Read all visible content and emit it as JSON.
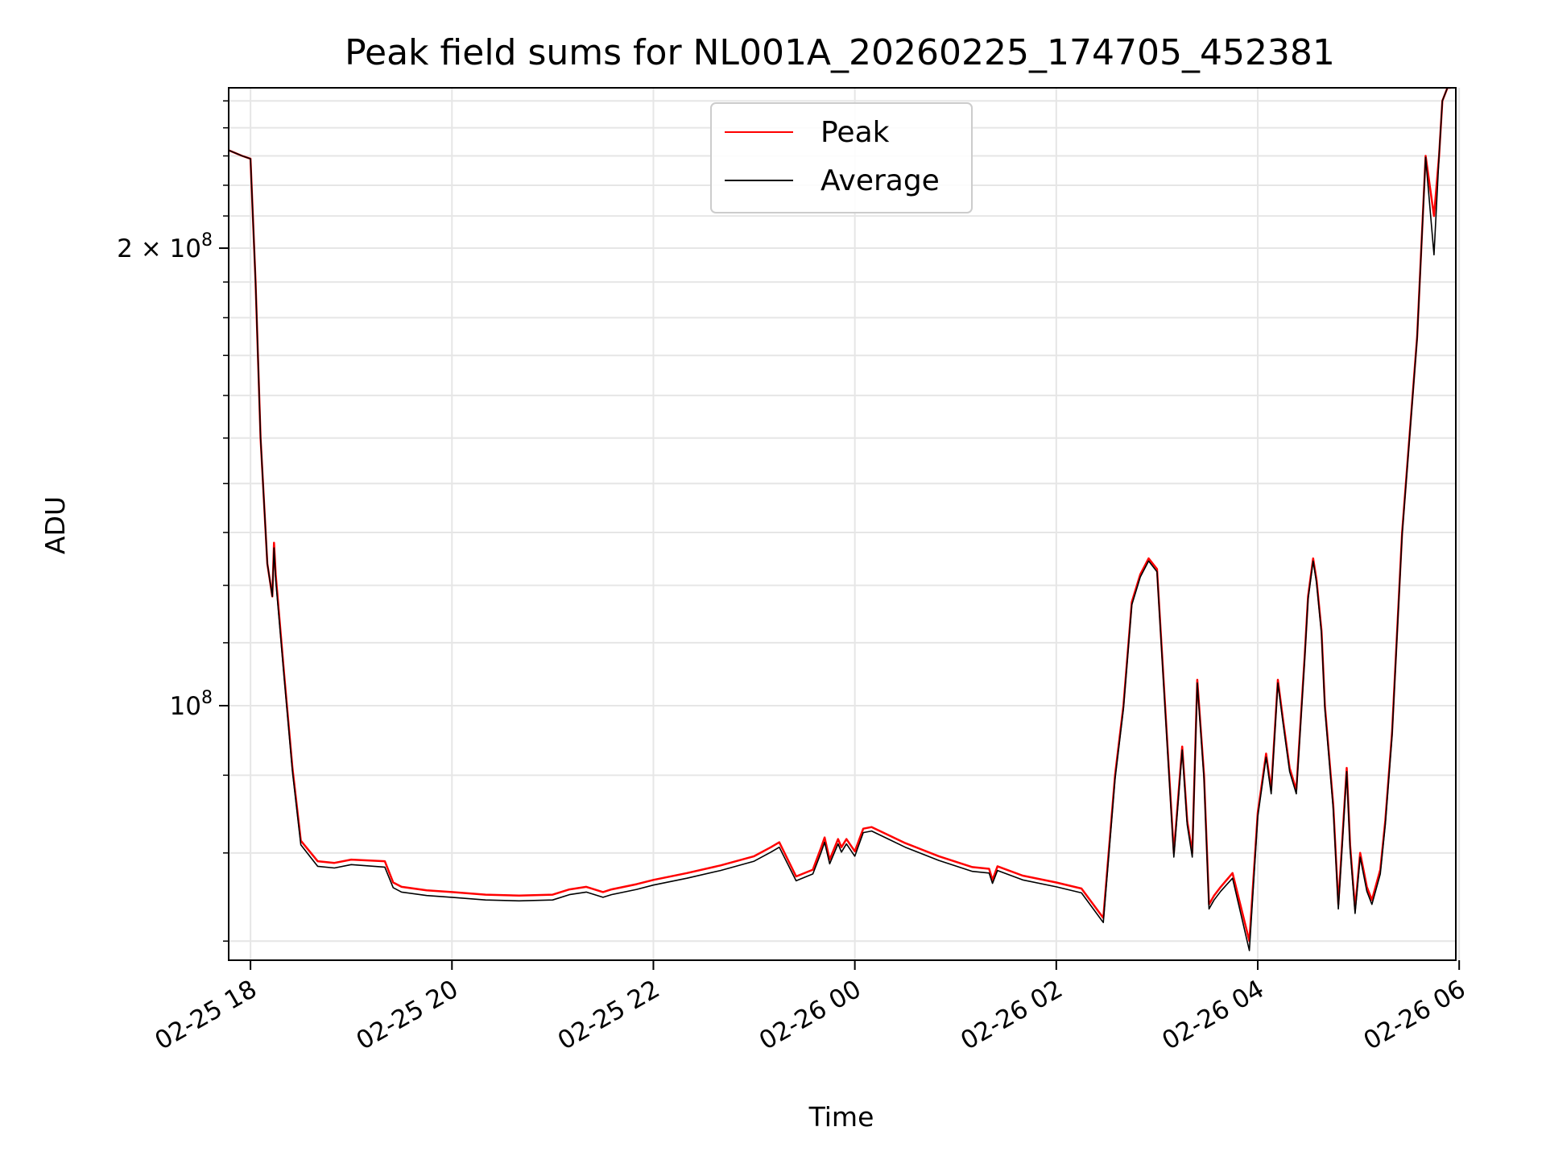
{
  "chart_data": {
    "type": "line",
    "title": "Peak field sums for NL001A_20260225_174705_452381",
    "xlabel": "Time",
    "ylabel": "ADU",
    "yscale": "log",
    "xlim": [
      "02-25 17:47",
      "02-26 05:58"
    ],
    "ylim": [
      68000000,
      255000000
    ],
    "grid": true,
    "legend_position": "top-center",
    "x_ticks": [
      "02-25 18",
      "02-25 20",
      "02-25 22",
      "02-26 00",
      "02-26 02",
      "02-26 04",
      "02-26 06"
    ],
    "y_ticks": [
      {
        "value": 200000000,
        "label": "2 × 10^8",
        "base": "2 × 10",
        "exp": "8"
      },
      {
        "value": 100000000,
        "label": "10^8",
        "base": "10",
        "exp": "8"
      }
    ],
    "x": [
      "02-25 17:47",
      "02-25 17:55",
      "02-25 18:00",
      "02-25 18:03",
      "02-25 18:06",
      "02-25 18:10",
      "02-25 18:13",
      "02-25 18:14",
      "02-25 18:15",
      "02-25 18:20",
      "02-25 18:25",
      "02-25 18:30",
      "02-25 18:40",
      "02-25 18:50",
      "02-25 19:00",
      "02-25 19:20",
      "02-25 19:25",
      "02-25 19:30",
      "02-25 19:45",
      "02-25 20:00",
      "02-25 20:20",
      "02-25 20:40",
      "02-25 21:00",
      "02-25 21:10",
      "02-25 21:20",
      "02-25 21:30",
      "02-25 21:35",
      "02-25 21:50",
      "02-25 22:00",
      "02-25 22:20",
      "02-25 22:40",
      "02-25 23:00",
      "02-25 23:10",
      "02-25 23:15",
      "02-25 23:25",
      "02-25 23:35",
      "02-25 23:40",
      "02-25 23:42",
      "02-25 23:45",
      "02-25 23:50",
      "02-25 23:52",
      "02-25 23:55",
      "02-26 00:00",
      "02-26 00:05",
      "02-26 00:10",
      "02-26 00:20",
      "02-26 00:30",
      "02-26 00:50",
      "02-26 01:10",
      "02-26 01:20",
      "02-26 01:22",
      "02-26 01:25",
      "02-26 01:40",
      "02-26 02:00",
      "02-26 02:15",
      "02-26 02:28",
      "02-26 02:35",
      "02-26 02:40",
      "02-26 02:45",
      "02-26 02:50",
      "02-26 02:55",
      "02-26 03:00",
      "02-26 03:10",
      "02-26 03:15",
      "02-26 03:18",
      "02-26 03:21",
      "02-26 03:24",
      "02-26 03:28",
      "02-26 03:31",
      "02-26 03:34",
      "02-26 03:38",
      "02-26 03:45",
      "02-26 03:55",
      "02-26 04:00",
      "02-26 04:05",
      "02-26 04:08",
      "02-26 04:12",
      "02-26 04:15",
      "02-26 04:19",
      "02-26 04:23",
      "02-26 04:28",
      "02-26 04:30",
      "02-26 04:33",
      "02-26 04:35",
      "02-26 04:38",
      "02-26 04:40",
      "02-26 04:45",
      "02-26 04:48",
      "02-26 04:53",
      "02-26 04:55",
      "02-26 04:58",
      "02-26 05:01",
      "02-26 05:05",
      "02-26 05:08",
      "02-26 05:13",
      "02-26 05:16",
      "02-26 05:20",
      "02-26 05:26",
      "02-26 05:35",
      "02-26 05:40",
      "02-26 05:45",
      "02-26 05:48",
      "02-26 05:50",
      "02-26 05:53",
      "02-26 05:55"
    ],
    "series": [
      {
        "name": "Peak",
        "color": "#ff0000",
        "values": [
          232000000,
          230000000,
          229000000,
          190000000,
          150000000,
          124000000,
          118000000,
          128000000,
          122000000,
          105000000,
          91000000,
          81500000,
          79000000,
          78800000,
          79200000,
          79000000,
          76500000,
          76000000,
          75600000,
          75400000,
          75100000,
          75000000,
          75100000,
          75700000,
          76000000,
          75400000,
          75700000,
          76300000,
          76800000,
          77600000,
          78500000,
          79600000,
          80700000,
          81300000,
          77200000,
          78000000,
          80700000,
          81900000,
          79200000,
          81700000,
          80700000,
          81700000,
          80200000,
          83000000,
          83200000,
          82200000,
          81200000,
          79600000,
          78300000,
          78100000,
          76800000,
          78400000,
          77300000,
          76500000,
          75800000,
          72500000,
          90000000,
          100000000,
          117000000,
          122000000,
          125000000,
          123000000,
          80000000,
          94000000,
          84000000,
          80000000,
          104000000,
          90000000,
          74000000,
          75000000,
          76000000,
          77600000,
          70000000,
          85000000,
          93000000,
          88000000,
          104000000,
          98000000,
          91000000,
          88000000,
          108000000,
          118000000,
          125000000,
          121000000,
          112000000,
          100000000,
          86000000,
          74000000,
          91000000,
          81000000,
          73500000,
          80000000,
          76000000,
          74500000,
          78000000,
          84000000,
          96000000,
          130000000,
          175000000,
          230000000,
          210000000,
          230000000,
          250000000,
          255000000,
          255000000
        ]
      },
      {
        "name": "Average",
        "color": "#000000",
        "values": [
          232000000,
          230000000,
          229000000,
          190000000,
          150000000,
          124000000,
          118000000,
          127000000,
          121000000,
          104500000,
          90500000,
          81000000,
          78400000,
          78200000,
          78600000,
          78300000,
          75900000,
          75400000,
          75000000,
          74800000,
          74500000,
          74400000,
          74500000,
          75100000,
          75400000,
          74800000,
          75100000,
          75700000,
          76200000,
          77000000,
          77900000,
          79000000,
          80100000,
          80700000,
          76700000,
          77500000,
          80100000,
          81300000,
          78700000,
          81100000,
          80100000,
          81100000,
          79600000,
          82500000,
          82700000,
          81700000,
          80700000,
          79100000,
          77800000,
          77600000,
          76400000,
          77900000,
          76800000,
          76000000,
          75300000,
          72000000,
          89500000,
          99500000,
          116500000,
          121500000,
          124500000,
          122500000,
          79500000,
          93500000,
          83500000,
          79500000,
          103500000,
          89500000,
          73500000,
          74500000,
          75500000,
          77000000,
          69000000,
          84500000,
          92500000,
          87500000,
          103500000,
          97500000,
          90500000,
          87500000,
          107500000,
          117500000,
          124500000,
          120500000,
          111500000,
          99500000,
          85500000,
          73500000,
          90500000,
          80500000,
          73000000,
          79500000,
          75500000,
          74000000,
          77500000,
          83500000,
          95500000,
          129500000,
          174500000,
          229500000,
          198000000,
          230000000,
          250000000,
          255000000,
          255000000
        ]
      }
    ]
  }
}
